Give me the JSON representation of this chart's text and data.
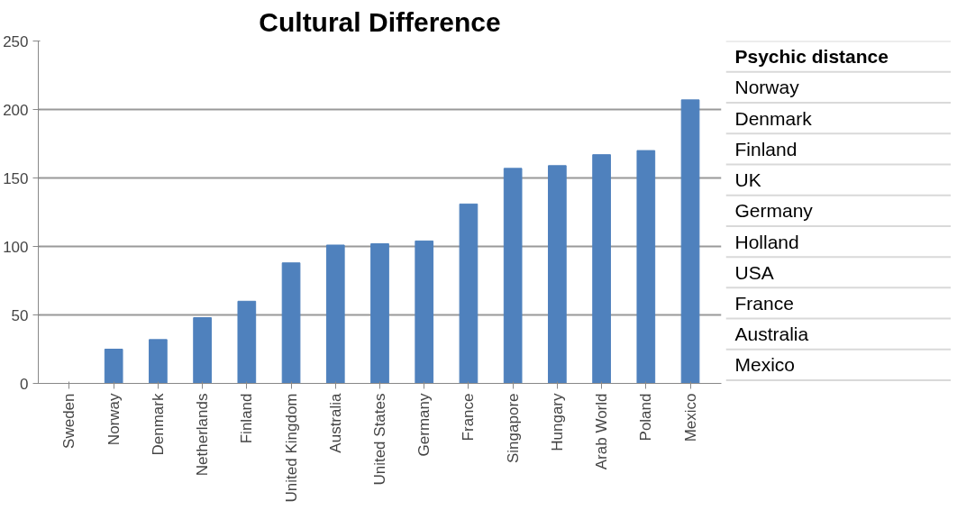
{
  "chart_data": [
    {
      "type": "bar",
      "title": "Cultural Difference",
      "categories": [
        "Sweden",
        "Norway",
        "Denmark",
        "Netherlands",
        "Finland",
        "United Kingdom",
        "Australia",
        "United States",
        "Germany",
        "France",
        "Singapore",
        "Hungary",
        "Arab World",
        "Poland",
        "Mexico"
      ],
      "values": [
        0,
        25,
        32,
        48,
        60,
        88,
        101,
        102,
        104,
        131,
        157,
        159,
        167,
        170,
        207
      ],
      "color": "#4f81bd",
      "ylim": [
        0,
        250
      ],
      "yticks": [
        0,
        50,
        100,
        150,
        200,
        250
      ],
      "grid": "y"
    },
    {
      "type": "other",
      "title": "Psychic distance",
      "annotations": [
        "Norway",
        "Denmark",
        "Finland",
        "UK",
        "Germany",
        "Holland",
        "USA",
        "France",
        "Australia",
        "Mexico"
      ]
    }
  ]
}
